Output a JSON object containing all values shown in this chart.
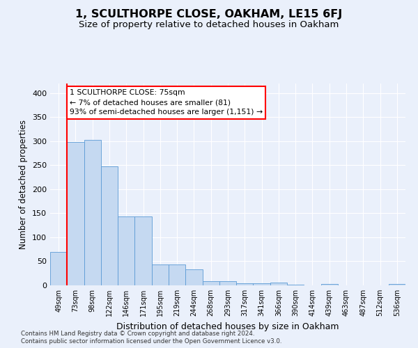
{
  "title": "1, SCULTHORPE CLOSE, OAKHAM, LE15 6FJ",
  "subtitle": "Size of property relative to detached houses in Oakham",
  "xlabel": "Distribution of detached houses by size in Oakham",
  "ylabel": "Number of detached properties",
  "footer_line1": "Contains HM Land Registry data © Crown copyright and database right 2024.",
  "footer_line2": "Contains public sector information licensed under the Open Government Licence v3.0.",
  "bar_labels": [
    "49sqm",
    "73sqm",
    "98sqm",
    "122sqm",
    "146sqm",
    "171sqm",
    "195sqm",
    "219sqm",
    "244sqm",
    "268sqm",
    "293sqm",
    "317sqm",
    "341sqm",
    "366sqm",
    "390sqm",
    "414sqm",
    "439sqm",
    "463sqm",
    "487sqm",
    "512sqm",
    "536sqm"
  ],
  "bar_values": [
    70,
    298,
    303,
    248,
    143,
    143,
    44,
    44,
    33,
    9,
    9,
    5,
    5,
    6,
    1,
    0,
    3,
    0,
    0,
    0,
    3
  ],
  "bar_color": "#c5d9f1",
  "bar_edge_color": "#5b9bd5",
  "red_line_index": 1,
  "ylim": [
    0,
    420
  ],
  "yticks": [
    0,
    50,
    100,
    150,
    200,
    250,
    300,
    350,
    400
  ],
  "annotation_text": "1 SCULTHORPE CLOSE: 75sqm\n← 7% of detached houses are smaller (81)\n93% of semi-detached houses are larger (1,151) →",
  "annotation_box_color": "white",
  "annotation_box_edge_color": "red",
  "background_color": "#eaf0fb",
  "grid_color": "white",
  "title_fontsize": 11.5,
  "subtitle_fontsize": 9.5,
  "xlabel_fontsize": 9,
  "ylabel_fontsize": 8.5
}
